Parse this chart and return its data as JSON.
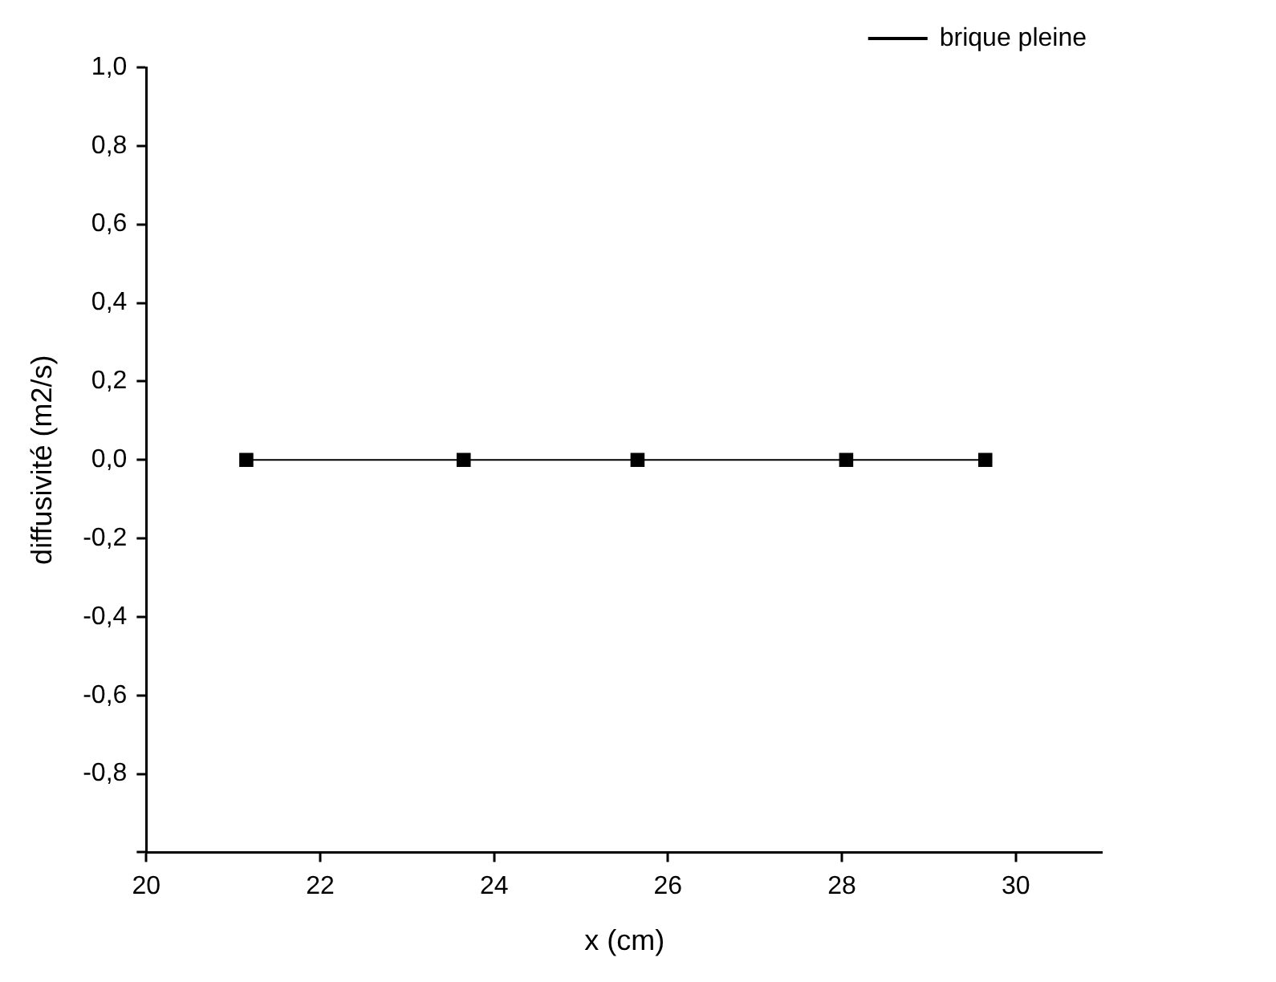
{
  "chart_data": {
    "type": "line",
    "xlabel": "x (cm)",
    "ylabel": "diffusivité (m2/s)",
    "x": [
      21.15,
      23.65,
      25.65,
      28.05,
      29.65
    ],
    "series": [
      {
        "name": "brique pleine",
        "color": "#000000",
        "values": [
          0,
          0,
          0,
          0,
          0
        ]
      }
    ],
    "xlim": [
      20,
      31
    ],
    "xticks": [
      20,
      22,
      24,
      26,
      28,
      30
    ],
    "ylim": [
      -1,
      1
    ],
    "yticks": [
      {
        "value": -1,
        "label": null
      },
      {
        "value": -0.8,
        "label": "-0,8"
      },
      {
        "value": -0.6,
        "label": "-0,6"
      },
      {
        "value": -0.4,
        "label": "-0,4"
      },
      {
        "value": -0.2,
        "label": "-0,2"
      },
      {
        "value": 0,
        "label": "0,0"
      },
      {
        "value": 0.2,
        "label": "0,2"
      },
      {
        "value": 0.4,
        "label": "0,4"
      },
      {
        "value": 0.6,
        "label": "0,6"
      },
      {
        "value": 0.8,
        "label": "0,8"
      },
      {
        "value": 1,
        "label": "1,0"
      }
    ],
    "grid": false,
    "legend": "top right",
    "marker": "square",
    "line_style": "solid"
  }
}
